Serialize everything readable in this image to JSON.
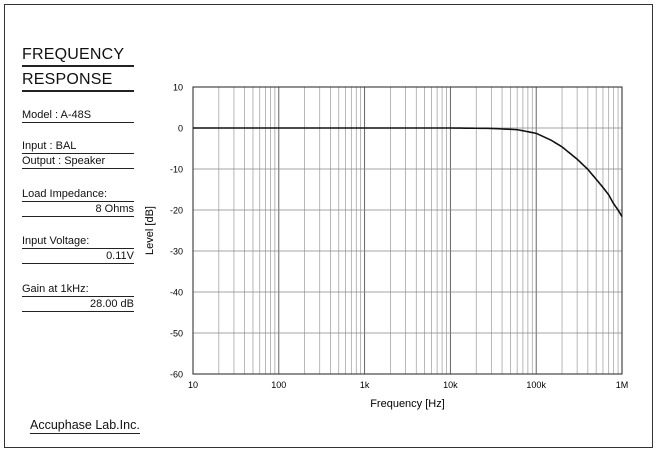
{
  "page": {
    "title_line1": "FREQUENCY",
    "title_line2": "RESPONSE",
    "model": "Model   :  A-48S",
    "input": "Input    :  BAL",
    "output": "Output   :  Speaker",
    "load_label": "Load Impedance:",
    "load_value": "8 Ohms",
    "input_voltage_label": "Input Voltage:",
    "input_voltage_value": "0.11V",
    "gain_label": "Gain at 1kHz:",
    "gain_value": "28.00 dB",
    "footer": "Accuphase Lab.Inc."
  },
  "chart_data": {
    "type": "line",
    "xscale": "log",
    "xlim": [
      10,
      1000000
    ],
    "ylim": [
      -60,
      10
    ],
    "xlabel": "Frequency  [Hz]",
    "ylabel": "Level  [dB]",
    "xticks": [
      10,
      100,
      1000,
      10000,
      100000,
      1000000
    ],
    "xtick_labels": [
      "10",
      "100",
      "1k",
      "10k",
      "100k",
      "1M"
    ],
    "yticks": [
      10,
      0,
      -10,
      -20,
      -30,
      -40,
      -50,
      -60
    ],
    "ytick_labels": [
      "10",
      "0",
      "-10",
      "-20",
      "-30",
      "-40",
      "-50",
      "-60"
    ],
    "grid": true,
    "series": [
      {
        "x": [
          10,
          100,
          1000,
          10000,
          30000,
          60000,
          100000,
          150000,
          200000,
          300000,
          400000,
          500000,
          600000,
          700000,
          800000,
          900000,
          1000000
        ],
        "y": [
          0,
          0,
          0,
          0,
          -0.1,
          -0.4,
          -1.3,
          -3,
          -4.6,
          -7.6,
          -10.1,
          -12.5,
          -14.5,
          -16.3,
          -18.5,
          -20,
          -21.6
        ]
      }
    ]
  }
}
